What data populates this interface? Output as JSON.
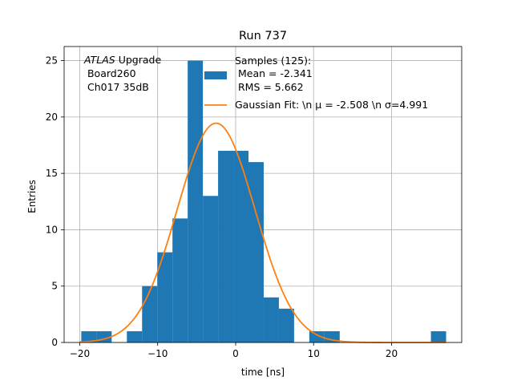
{
  "chart_data": {
    "type": "bar",
    "title": "Run 737",
    "xlabel": "time [ns]",
    "ylabel": "Entries",
    "xlim": [
      -22.0,
      29.0
    ],
    "ylim": [
      0,
      26.25
    ],
    "xticks": [
      -20,
      -10,
      0,
      10,
      20
    ],
    "yticks": [
      0,
      5,
      10,
      15,
      20,
      25
    ],
    "grid": true,
    "bar_color": "#1f77b4",
    "fit_color": "#ff7f0e",
    "bins": [
      {
        "left": -19.8,
        "right": -17.85,
        "count": 1
      },
      {
        "left": -17.85,
        "right": -15.9,
        "count": 1
      },
      {
        "left": -13.95,
        "right": -12.0,
        "count": 1
      },
      {
        "left": -12.0,
        "right": -10.05,
        "count": 5
      },
      {
        "left": -10.05,
        "right": -8.1,
        "count": 8
      },
      {
        "left": -8.1,
        "right": -6.15,
        "count": 11
      },
      {
        "left": -6.15,
        "right": -4.2,
        "count": 25
      },
      {
        "left": -4.2,
        "right": -2.25,
        "count": 13
      },
      {
        "left": -2.25,
        "right": -0.3,
        "count": 17
      },
      {
        "left": -0.3,
        "right": 1.65,
        "count": 17
      },
      {
        "left": 1.65,
        "right": 3.6,
        "count": 16
      },
      {
        "left": 3.6,
        "right": 5.55,
        "count": 4
      },
      {
        "left": 5.55,
        "right": 7.5,
        "count": 3
      },
      {
        "left": 9.45,
        "right": 11.4,
        "count": 1
      },
      {
        "left": 11.4,
        "right": 13.35,
        "count": 1
      },
      {
        "left": 25.05,
        "right": 27.0,
        "count": 1
      }
    ],
    "fit": {
      "type": "gaussian",
      "mean": -2.508,
      "sigma": 4.991,
      "amplitude": 19.45
    },
    "annotation": {
      "italic": "ATLAS",
      "line1_rest": " Upgrade",
      "line2": " Board260",
      "line3": " Ch017 35dB"
    },
    "legend": {
      "position": "top-right",
      "hist_label_lines": [
        "Samples (125):",
        " Mean = -2.341",
        " RMS = 5.662"
      ],
      "fit_label": "Gaussian Fit: \\n μ = -2.508 \\n σ=4.991"
    }
  }
}
